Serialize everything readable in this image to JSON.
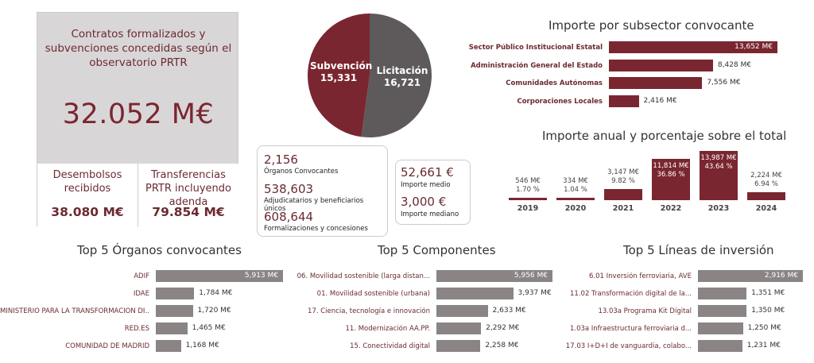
{
  "kpi": {
    "title": "Contratos formalizados y subvenciones concedidas según el observatorio PRTR",
    "total": "32.052 M€",
    "desembolsos_label": "Desembolsos recibidos",
    "desembolsos_value": "38.080 M€",
    "transferencias_label": "Transferencias PRTR incluyendo adenda",
    "transferencias_value": "79.854 M€"
  },
  "pie": {
    "slices": [
      {
        "label": "Subvención",
        "value": 15331,
        "value_label": "15,331",
        "color": "#7a2630"
      },
      {
        "label": "Licitación",
        "value": 16721,
        "value_label": "16,721",
        "color": "#5e5a5b"
      }
    ]
  },
  "stats1": {
    "organos_num": "2,156",
    "organos_lbl": "Órganos Convocantes",
    "adjud_num": "538,603",
    "adjud_lbl": "Adjudicatarios y beneficiarios únicos",
    "formal_num": "608,644",
    "formal_lbl": "Formalizaciones y concesiones"
  },
  "stats2": {
    "medio_num": "52,661 €",
    "medio_lbl": "Importe medio",
    "mediano_num": "3,000 €",
    "mediano_lbl": "Importe mediano"
  },
  "subsector": {
    "title": "Importe por subsector convocante",
    "chart_data": {
      "type": "bar",
      "categories": [
        "Sector Público Institucional Estatal",
        "Administración General del Estado",
        "Comunidades Autónomas",
        "Corporaciones Locales"
      ],
      "values": [
        13652,
        8428,
        7556,
        2416
      ],
      "value_labels": [
        "13,652 M€",
        "8,428 M€",
        "7,556 M€",
        "2,416 M€"
      ],
      "max": 13652,
      "color": "#7a2630"
    }
  },
  "anual": {
    "title": "Importe anual y porcentaje sobre el total",
    "chart_data": {
      "type": "bar",
      "categories": [
        "2019",
        "2020",
        "2021",
        "2022",
        "2023",
        "2024"
      ],
      "values": [
        546,
        334,
        3147,
        11814,
        13987,
        2224
      ],
      "value_labels": [
        "546 M€",
        "334 M€",
        "3,147 M€",
        "11,814 M€",
        "13,987 M€",
        "2,224 M€"
      ],
      "pct_labels": [
        "1.70 %",
        "1.04 %",
        "9.82 %",
        "36.86 %",
        "43.64 %",
        "6.94 %"
      ],
      "max": 13987,
      "color": "#7a2630"
    }
  },
  "top_organos": {
    "title": "Top 5 Órganos convocantes",
    "chart_data": {
      "type": "bar",
      "categories": [
        "ADIF",
        "IDAE",
        "MINISTERIO PARA LA TRANSFORMACIÓN DI...",
        "RED.ES",
        "COMUNIDAD DE MADRID"
      ],
      "values": [
        5913,
        1784,
        1720,
        1465,
        1168
      ],
      "value_labels": [
        "5,913 M€",
        "1,784 M€",
        "1,720 M€",
        "1,465 M€",
        "1,168 M€"
      ],
      "max": 5913,
      "color": "#8a8485"
    }
  },
  "top_componentes": {
    "title": "Top 5 Componentes",
    "chart_data": {
      "type": "bar",
      "categories": [
        "06. Movilidad sostenible (larga distan...",
        "01. Movilidad sostenible (urbana)",
        "17. Ciencia, tecnología e innovación",
        "11. Modernización AA.PP.",
        "15. Conectividad digital"
      ],
      "values": [
        5956,
        3937,
        2633,
        2292,
        2258
      ],
      "value_labels": [
        "5,956 M€",
        "3,937 M€",
        "2,633 M€",
        "2,292 M€",
        "2,258 M€"
      ],
      "max": 5956,
      "color": "#8a8485"
    }
  },
  "top_lineas": {
    "title": "Top 5 Líneas de inversión",
    "chart_data": {
      "type": "bar",
      "categories": [
        "6.01 Inversión ferroviaria, AVE",
        "11.02 Transformación digital de la...",
        "13.03a Programa Kit Digital",
        "1.03a Infraestructura ferroviaria d...",
        "17.03 I+D+I de vanguardia, colabo..."
      ],
      "values": [
        2916,
        1351,
        1350,
        1250,
        1231
      ],
      "value_labels": [
        "2,916 M€",
        "1,351 M€",
        "1,350 M€",
        "1,250 M€",
        "1,231 M€"
      ],
      "max": 2916,
      "color": "#8a8485"
    }
  }
}
